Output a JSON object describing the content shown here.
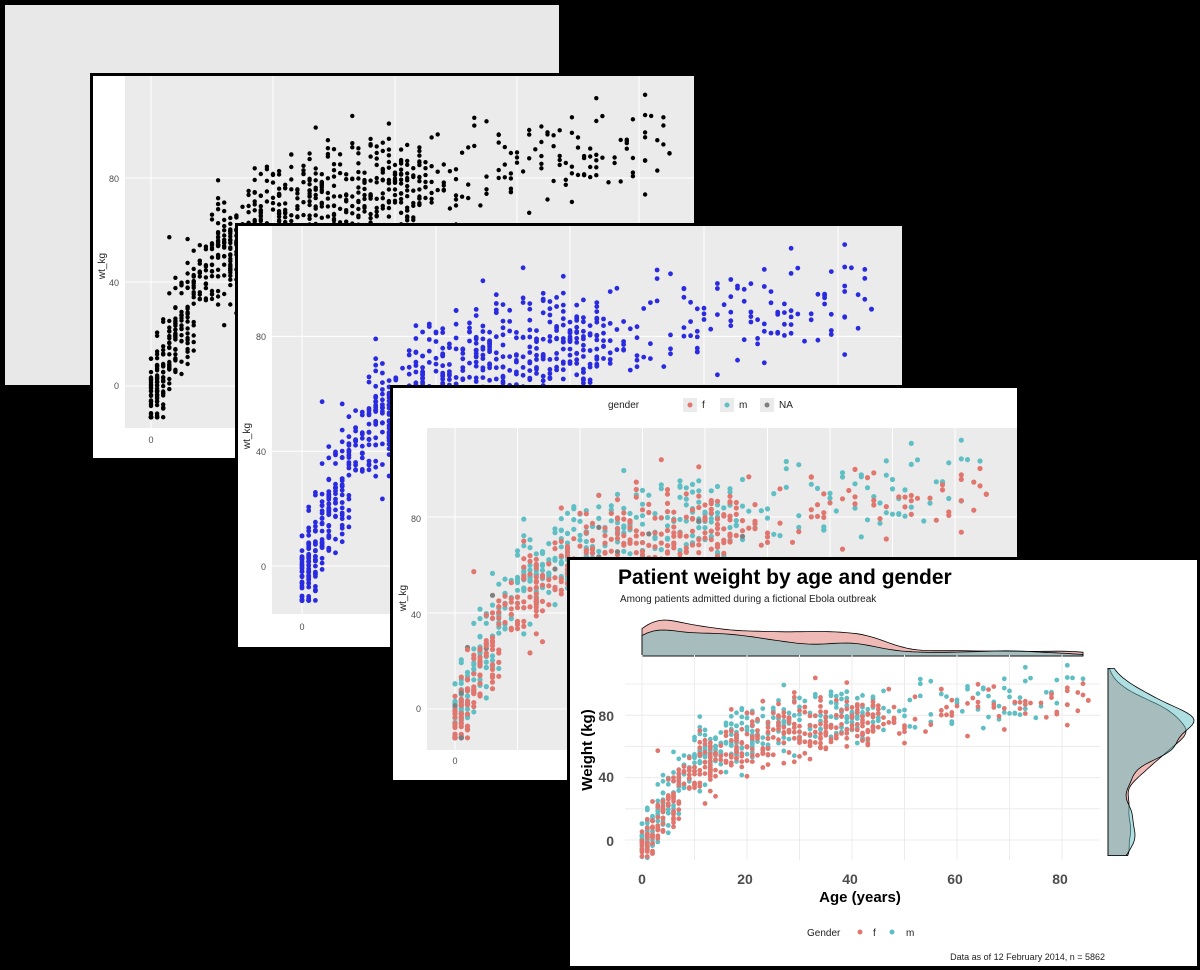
{
  "colors": {
    "female": "#e0766e",
    "male": "#5fbfc4",
    "na": "#7f7f7f",
    "black": "#000000",
    "blue": "#2a2ae0",
    "panel_bg": "#ebebeb"
  },
  "panel1": {
    "ylabel": "wt_kg",
    "yticks": [
      "0",
      "40",
      "80"
    ],
    "xticks": [
      "0"
    ]
  },
  "panel2": {
    "ylabel": "wt_kg",
    "yticks": [
      "0",
      "40",
      "80"
    ],
    "xticks": [
      "0"
    ]
  },
  "panel3": {
    "ylabel": "wt_kg",
    "yticks": [
      "0",
      "40",
      "80"
    ],
    "xticks": [
      "0"
    ],
    "legend": {
      "title": "gender",
      "items": [
        "f",
        "m",
        "NA"
      ]
    }
  },
  "panel4": {
    "title": "Patient weight by age and gender",
    "subtitle": "Among patients admitted during a fictional Ebola outbreak",
    "xlabel": "Age (years)",
    "ylabel": "Weight (kg)",
    "xticks": [
      "0",
      "20",
      "40",
      "60",
      "80"
    ],
    "yticks": [
      "0",
      "40",
      "80"
    ],
    "legend": {
      "title": "Gender",
      "items": [
        "f",
        "m"
      ]
    },
    "caption": "Data as of 12 February 2014, n = 5862"
  },
  "chart_data": [
    {
      "type": "scatter",
      "xlabel": "",
      "ylabel": "wt_kg",
      "color": "black",
      "x_range": [
        0,
        85
      ],
      "y_range": [
        -15,
        115
      ],
      "grid": true
    },
    {
      "type": "scatter",
      "xlabel": "",
      "ylabel": "wt_kg",
      "color": "blue",
      "x_range": [
        0,
        85
      ],
      "y_range": [
        -15,
        115
      ],
      "grid": true
    },
    {
      "type": "scatter",
      "xlabel": "",
      "ylabel": "wt_kg",
      "color_by": "gender",
      "series": [
        {
          "name": "f"
        },
        {
          "name": "m"
        },
        {
          "name": "NA"
        }
      ],
      "x_range": [
        0,
        85
      ],
      "y_range": [
        -15,
        115
      ],
      "grid": true,
      "legend": "top"
    },
    {
      "type": "scatter",
      "title": "Patient weight by age and gender",
      "subtitle": "Among patients admitted during a fictional Ebola outbreak",
      "xlabel": "Age (years)",
      "ylabel": "Weight (kg)",
      "series": [
        {
          "name": "f"
        },
        {
          "name": "m"
        }
      ],
      "x_range": [
        0,
        85
      ],
      "y_range": [
        -15,
        115
      ],
      "grid": true,
      "legend": "bottom",
      "marginal_densities": true,
      "caption": "Data as of 12 February 2014, n = 5862"
    }
  ]
}
